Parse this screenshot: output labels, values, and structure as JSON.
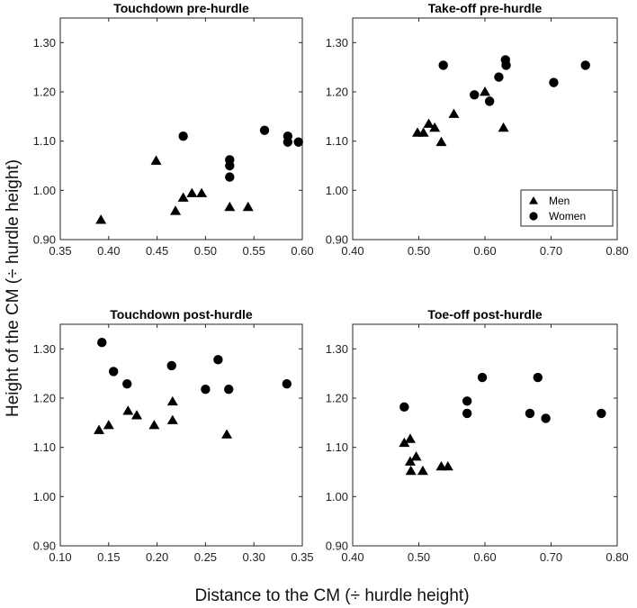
{
  "figure": {
    "xlabel": "Distance to the CM (÷ hurdle height)",
    "ylabel": "Height of the CM (÷ hurdle height)"
  },
  "chart_data": [
    {
      "type": "scatter",
      "title": "Touchdown pre-hurdle",
      "xlim": [
        0.35,
        0.6
      ],
      "ylim": [
        0.9,
        1.35
      ],
      "xticks": [
        "0.35",
        "0.40",
        "0.45",
        "0.50",
        "0.55",
        "0.60"
      ],
      "yticks": [
        "0.90",
        "1.00",
        "1.10",
        "1.20",
        "1.30"
      ],
      "legend": null,
      "series": [
        {
          "name": "Men",
          "marker": "triangle",
          "points": [
            [
              0.392,
              0.94
            ],
            [
              0.449,
              1.06
            ],
            [
              0.469,
              0.958
            ],
            [
              0.477,
              0.985
            ],
            [
              0.486,
              0.994
            ],
            [
              0.496,
              0.994
            ],
            [
              0.525,
              0.966
            ],
            [
              0.544,
              0.966
            ]
          ]
        },
        {
          "name": "Women",
          "marker": "circle",
          "points": [
            [
              0.477,
              1.11
            ],
            [
              0.525,
              1.062
            ],
            [
              0.525,
              1.05
            ],
            [
              0.525,
              1.027
            ],
            [
              0.561,
              1.122
            ],
            [
              0.585,
              1.11
            ],
            [
              0.585,
              1.098
            ],
            [
              0.596,
              1.098
            ]
          ]
        }
      ]
    },
    {
      "type": "scatter",
      "title": "Take-off pre-hurdle",
      "xlim": [
        0.4,
        0.8
      ],
      "ylim": [
        0.9,
        1.35
      ],
      "xticks": [
        "0.40",
        "0.50",
        "0.60",
        "0.70",
        "0.80"
      ],
      "yticks": [
        "0.90",
        "1.00",
        "1.10",
        "1.20",
        "1.30"
      ],
      "legend": {
        "position": "lower-right",
        "entries": [
          "Men",
          "Women"
        ]
      },
      "series": [
        {
          "name": "Men",
          "marker": "triangle",
          "points": [
            [
              0.498,
              1.117
            ],
            [
              0.507,
              1.117
            ],
            [
              0.515,
              1.135
            ],
            [
              0.524,
              1.127
            ],
            [
              0.534,
              1.098
            ],
            [
              0.553,
              1.155
            ],
            [
              0.6,
              1.2
            ],
            [
              0.628,
              1.127
            ]
          ]
        },
        {
          "name": "Women",
          "marker": "circle",
          "points": [
            [
              0.537,
              1.254
            ],
            [
              0.584,
              1.194
            ],
            [
              0.607,
              1.181
            ],
            [
              0.621,
              1.23
            ],
            [
              0.631,
              1.265
            ],
            [
              0.632,
              1.254
            ],
            [
              0.704,
              1.219
            ],
            [
              0.752,
              1.254
            ]
          ]
        }
      ]
    },
    {
      "type": "scatter",
      "title": "Touchdown post-hurdle",
      "xlim": [
        0.1,
        0.35
      ],
      "ylim": [
        0.9,
        1.35
      ],
      "xticks": [
        "0.10",
        "0.15",
        "0.20",
        "0.25",
        "0.30",
        "0.35"
      ],
      "yticks": [
        "0.90",
        "1.00",
        "1.10",
        "1.20",
        "1.30"
      ],
      "legend": null,
      "series": [
        {
          "name": "Men",
          "marker": "triangle",
          "points": [
            [
              0.14,
              1.135
            ],
            [
              0.15,
              1.145
            ],
            [
              0.17,
              1.174
            ],
            [
              0.179,
              1.165
            ],
            [
              0.197,
              1.145
            ],
            [
              0.216,
              1.193
            ],
            [
              0.216,
              1.155
            ],
            [
              0.272,
              1.126
            ]
          ]
        },
        {
          "name": "Women",
          "marker": "circle",
          "points": [
            [
              0.143,
              1.313
            ],
            [
              0.155,
              1.254
            ],
            [
              0.169,
              1.229
            ],
            [
              0.215,
              1.266
            ],
            [
              0.25,
              1.218
            ],
            [
              0.263,
              1.278
            ],
            [
              0.274,
              1.218
            ],
            [
              0.334,
              1.229
            ]
          ]
        }
      ]
    },
    {
      "type": "scatter",
      "title": "Toe-off post-hurdle",
      "xlim": [
        0.4,
        0.8
      ],
      "ylim": [
        0.9,
        1.35
      ],
      "xticks": [
        "0.40",
        "0.50",
        "0.60",
        "0.70",
        "0.80"
      ],
      "yticks": [
        "0.90",
        "1.00",
        "1.10",
        "1.20",
        "1.30"
      ],
      "legend": null,
      "series": [
        {
          "name": "Men",
          "marker": "triangle",
          "points": [
            [
              0.478,
              1.109
            ],
            [
              0.487,
              1.117
            ],
            [
              0.487,
              1.071
            ],
            [
              0.496,
              1.081
            ],
            [
              0.488,
              1.052
            ],
            [
              0.506,
              1.052
            ],
            [
              0.534,
              1.061
            ],
            [
              0.544,
              1.061
            ]
          ]
        },
        {
          "name": "Women",
          "marker": "circle",
          "points": [
            [
              0.478,
              1.182
            ],
            [
              0.573,
              1.194
            ],
            [
              0.573,
              1.169
            ],
            [
              0.596,
              1.242
            ],
            [
              0.668,
              1.169
            ],
            [
              0.68,
              1.242
            ],
            [
              0.692,
              1.159
            ],
            [
              0.776,
              1.169
            ]
          ]
        }
      ]
    }
  ]
}
